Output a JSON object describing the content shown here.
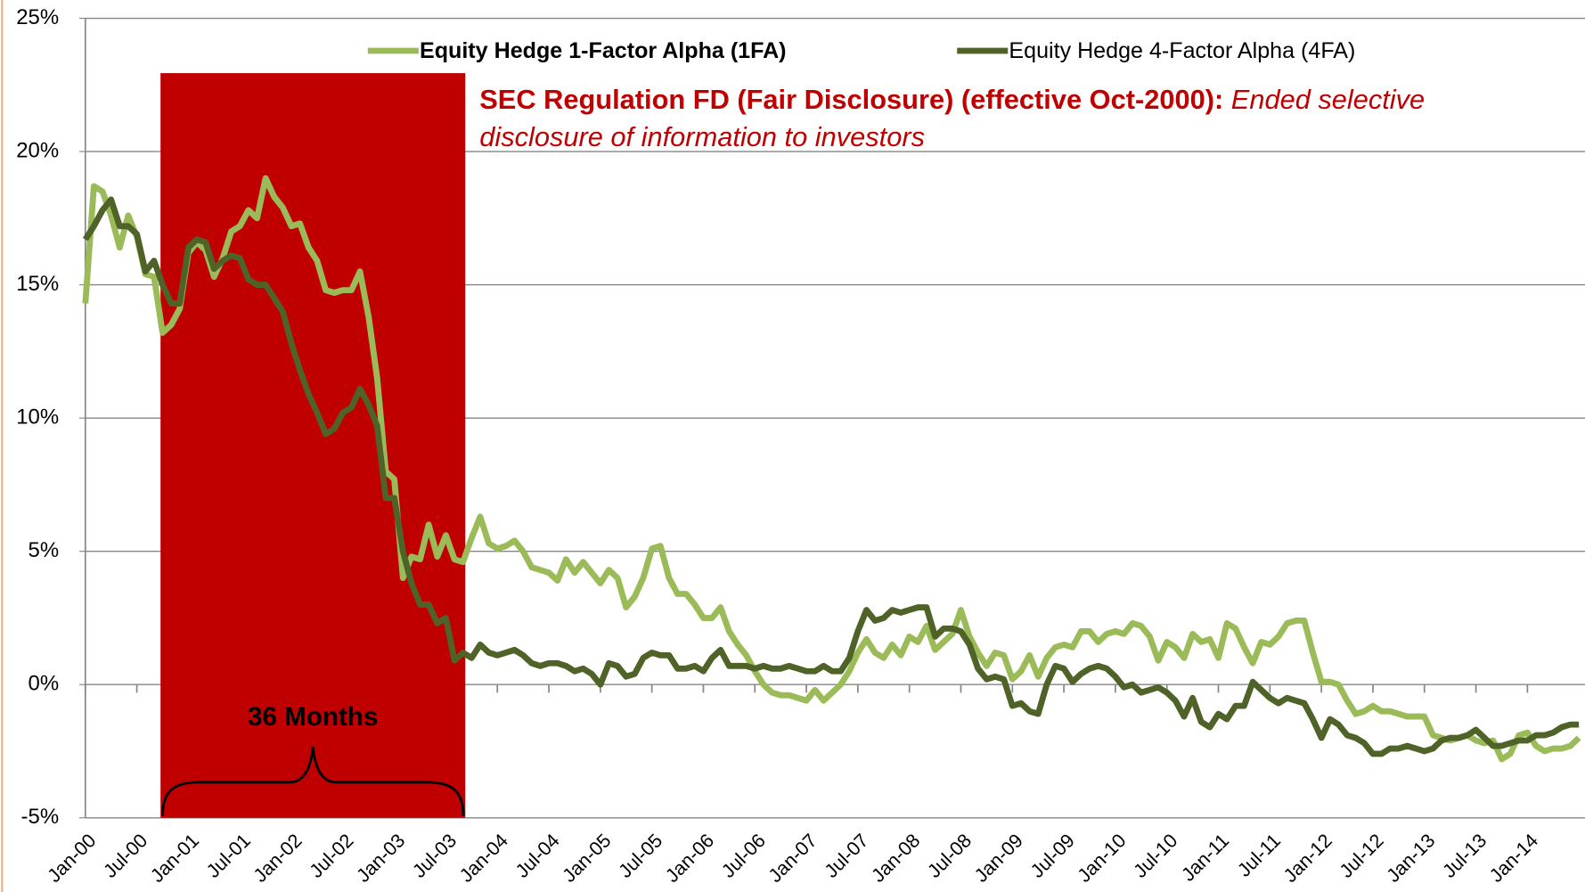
{
  "chart_data": {
    "type": "line",
    "categories": [
      "Jan-00",
      null,
      null,
      null,
      null,
      null,
      "Jul-00",
      null,
      null,
      null,
      null,
      null,
      "Jan-01",
      null,
      null,
      null,
      null,
      null,
      "Jul-01",
      null,
      null,
      null,
      null,
      null,
      "Jan-02",
      null,
      null,
      null,
      null,
      null,
      "Jul-02",
      null,
      null,
      null,
      null,
      null,
      "Jan-03",
      null,
      null,
      null,
      null,
      null,
      "Jul-03",
      null,
      null,
      null,
      null,
      null,
      "Jan-04",
      null,
      null,
      null,
      null,
      null,
      "Jul-04",
      null,
      null,
      null,
      null,
      null,
      "Jan-05",
      null,
      null,
      null,
      null,
      null,
      "Jul-05",
      null,
      null,
      null,
      null,
      null,
      "Jan-06",
      null,
      null,
      null,
      null,
      null,
      "Jul-06",
      null,
      null,
      null,
      null,
      null,
      "Jan-07",
      null,
      null,
      null,
      null,
      null,
      "Jul-07",
      null,
      null,
      null,
      null,
      null,
      "Jan-08",
      null,
      null,
      null,
      null,
      null,
      "Jul-08",
      null,
      null,
      null,
      null,
      null,
      "Jan-09",
      null,
      null,
      null,
      null,
      null,
      "Jul-09",
      null,
      null,
      null,
      null,
      null,
      "Jan-10",
      null,
      null,
      null,
      null,
      null,
      "Jul-10",
      null,
      null,
      null,
      null,
      null,
      "Jan-11",
      null,
      null,
      null,
      null,
      null,
      "Jul-11",
      null,
      null,
      null,
      null,
      null,
      "Jan-12",
      null,
      null,
      null,
      null,
      null,
      "Jul-12",
      null,
      null,
      null,
      null,
      null,
      "Jan-13",
      null,
      null,
      null,
      null,
      null,
      "Jul-13",
      null,
      null,
      null,
      null,
      null,
      "Jan-14",
      null,
      null,
      null,
      null,
      null,
      null
    ],
    "series": [
      {
        "name": "Equity Hedge 1-Factor Alpha (1FA)",
        "color": "#9bbb59",
        "values": [
          14.3,
          18.7,
          18.5,
          17.6,
          16.4,
          17.6,
          16.8,
          15.4,
          15.3,
          13.2,
          13.5,
          14.1,
          16.2,
          16.6,
          16.3,
          15.3,
          16.0,
          17.0,
          17.2,
          17.8,
          17.5,
          19.0,
          18.3,
          17.9,
          17.2,
          17.3,
          16.4,
          15.9,
          14.8,
          14.7,
          14.8,
          14.8,
          15.5,
          13.8,
          11.5,
          8.0,
          7.7,
          4.0,
          4.8,
          4.7,
          6.0,
          4.8,
          5.6,
          4.7,
          4.6,
          5.5,
          6.3,
          5.3,
          5.1,
          5.2,
          5.4,
          5.0,
          4.4,
          4.3,
          4.2,
          3.9,
          4.7,
          4.2,
          4.6,
          4.2,
          3.8,
          4.3,
          4.0,
          2.9,
          3.3,
          4.0,
          5.1,
          5.2,
          4.0,
          3.4,
          3.4,
          3.0,
          2.5,
          2.5,
          2.9,
          2.0,
          1.5,
          1.1,
          0.5,
          0.0,
          -0.3,
          -0.4,
          -0.4,
          -0.5,
          -0.6,
          -0.2,
          -0.6,
          -0.3,
          0.0,
          0.5,
          1.2,
          1.7,
          1.2,
          1.0,
          1.5,
          1.1,
          1.8,
          1.6,
          2.2,
          1.3,
          1.6,
          1.9,
          2.8,
          1.8,
          1.2,
          0.7,
          1.2,
          1.1,
          0.2,
          0.5,
          1.1,
          0.3,
          1.0,
          1.4,
          1.5,
          1.4,
          2.0,
          2.0,
          1.6,
          1.9,
          2.0,
          1.9,
          2.3,
          2.2,
          1.8,
          0.9,
          1.6,
          1.4,
          1.0,
          1.9,
          1.6,
          1.7,
          1.0,
          2.3,
          2.1,
          1.4,
          0.8,
          1.6,
          1.5,
          1.8,
          2.3,
          2.4,
          2.4,
          1.2,
          0.1,
          0.1,
          0.0,
          -0.6,
          -1.1,
          -1.0,
          -0.8,
          -1.0,
          -1.0,
          -1.1,
          -1.2,
          -1.2,
          -1.2,
          -1.9,
          -2.0,
          -2.1,
          -2.0,
          -1.9,
          -2.1,
          -2.2,
          -2.1,
          -2.8,
          -2.6,
          -1.9,
          -1.8,
          -2.3,
          -2.5,
          -2.4,
          -2.4,
          -2.3,
          -2.0
        ]
      },
      {
        "name": "Equity Hedge 4-Factor Alpha (4FA)",
        "color": "#4f6228",
        "values": [
          16.7,
          17.2,
          17.8,
          18.2,
          17.2,
          17.2,
          16.9,
          15.5,
          15.9,
          15.0,
          14.3,
          14.3,
          16.4,
          16.7,
          16.6,
          15.6,
          15.9,
          16.1,
          16.0,
          15.2,
          15.0,
          15.0,
          14.5,
          14.0,
          12.8,
          11.8,
          10.9,
          10.2,
          9.4,
          9.6,
          10.2,
          10.4,
          11.1,
          10.5,
          9.7,
          7.0,
          7.0,
          5.0,
          3.8,
          3.0,
          3.0,
          2.3,
          2.5,
          0.9,
          1.2,
          1.0,
          1.5,
          1.2,
          1.1,
          1.2,
          1.3,
          1.1,
          0.8,
          0.7,
          0.8,
          0.8,
          0.7,
          0.5,
          0.6,
          0.4,
          0.0,
          0.8,
          0.7,
          0.3,
          0.4,
          1.0,
          1.2,
          1.1,
          1.1,
          0.6,
          0.6,
          0.7,
          0.5,
          1.0,
          1.3,
          0.7,
          0.7,
          0.7,
          0.6,
          0.7,
          0.6,
          0.6,
          0.7,
          0.6,
          0.5,
          0.5,
          0.7,
          0.5,
          0.5,
          1.0,
          2.0,
          2.8,
          2.4,
          2.5,
          2.8,
          2.7,
          2.8,
          2.9,
          2.9,
          1.8,
          2.1,
          2.1,
          2.0,
          1.5,
          0.6,
          0.2,
          0.3,
          0.2,
          -0.8,
          -0.7,
          -1.0,
          -1.1,
          0.0,
          0.7,
          0.6,
          0.1,
          0.4,
          0.6,
          0.7,
          0.6,
          0.3,
          -0.1,
          0.0,
          -0.3,
          -0.2,
          -0.1,
          -0.3,
          -0.6,
          -1.2,
          -0.5,
          -1.4,
          -1.6,
          -1.1,
          -1.3,
          -0.8,
          -0.8,
          0.1,
          -0.2,
          -0.5,
          -0.7,
          -0.5,
          -0.6,
          -0.7,
          -1.3,
          -2.0,
          -1.3,
          -1.5,
          -1.9,
          -2.0,
          -2.2,
          -2.6,
          -2.6,
          -2.4,
          -2.4,
          -2.3,
          -2.4,
          -2.5,
          -2.4,
          -2.1,
          -2.0,
          -2.0,
          -1.9,
          -1.7,
          -2.0,
          -2.3,
          -2.3,
          -2.2,
          -2.1,
          -2.1,
          -1.9,
          -1.9,
          -1.8,
          -1.6,
          -1.5,
          -1.5
        ]
      }
    ],
    "ylim": [
      -5,
      25
    ],
    "yticks": [
      {
        "value": -5,
        "label": "-5%"
      },
      {
        "value": 0,
        "label": "0%"
      },
      {
        "value": 5,
        "label": "5%"
      },
      {
        "value": 10,
        "label": "10%"
      },
      {
        "value": 15,
        "label": "15%"
      },
      {
        "value": 20,
        "label": "20%"
      },
      {
        "value": 25,
        "label": "25%"
      }
    ],
    "grid": true,
    "legend": "top",
    "annotation_title": "SEC Regulation FD (Fair Disclosure) (effective Oct-2000):",
    "annotation_text": "Ended selective disclosure of information to investors",
    "period_label": "36 Months"
  }
}
